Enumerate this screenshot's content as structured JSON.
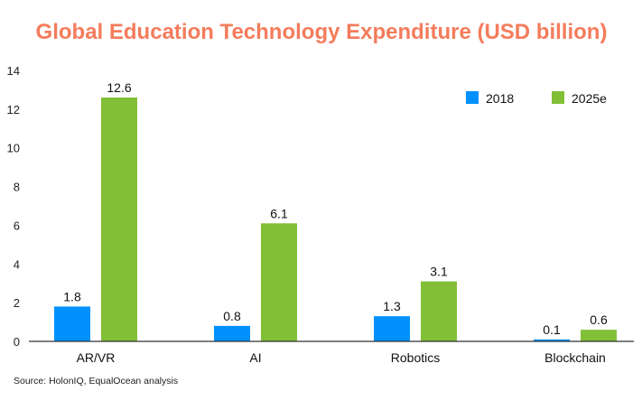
{
  "chart_data": {
    "type": "bar",
    "title": "Global Education Technology Expenditure (USD billion)",
    "xlabel": "",
    "ylabel": "",
    "categories": [
      "AR/VR",
      "AI",
      "Robotics",
      "Blockchain"
    ],
    "series": [
      {
        "name": "2018",
        "values": [
          1.8,
          0.8,
          1.3,
          0.1
        ],
        "labels": [
          "1.8",
          "0.8",
          "1.3",
          "0.1"
        ],
        "color": "#0091ff"
      },
      {
        "name": "2025e",
        "values": [
          12.6,
          6.1,
          3.1,
          0.6
        ],
        "labels": [
          "12.6",
          "6.1",
          "3.1",
          "0.6"
        ],
        "color": "#82bf37"
      }
    ],
    "ylim": [
      0,
      14
    ],
    "yticks": [
      "0",
      "2",
      "4",
      "6",
      "8",
      "10",
      "12",
      "14"
    ],
    "grid": false,
    "legend": "top-right",
    "title_color": "#f47c5c"
  },
  "source": "Source: HolonIQ, EqualOcean analysis"
}
